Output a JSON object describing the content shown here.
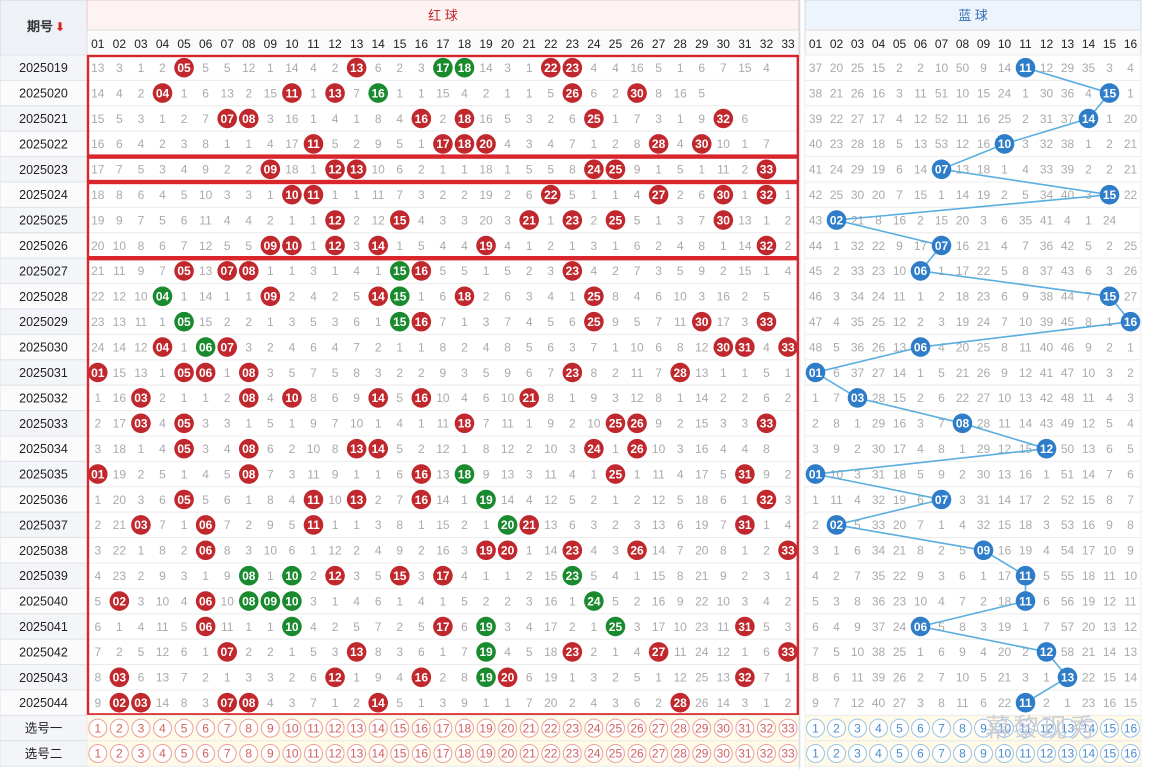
{
  "header": {
    "period_label": "期号",
    "red_label": "红 球",
    "blue_label": "蓝 球",
    "select_row_1": "选号一",
    "select_row_2": "选号二"
  },
  "colors": {
    "red_ball": "#c0282d",
    "green_ball": "#1a8a2e",
    "blue_ball": "#2f7dc8",
    "blue_line": "#5aaee0",
    "box_border": "#d9262c"
  },
  "icons": {
    "sort": "down-arrow-icon"
  },
  "watermark": "幕黎现秀",
  "rows": [
    {
      "period": "2025019",
      "red_cells": [
        13,
        3,
        1,
        2,
        "05",
        5,
        5,
        12,
        1,
        14,
        4,
        2,
        "13",
        6,
        2,
        3,
        "17",
        "18",
        14,
        3,
        1,
        "22",
        "23",
        4,
        4,
        16,
        5,
        1,
        6,
        7,
        15,
        4,
        null
      ],
      "green": [
        17,
        18
      ],
      "blue_cells": [
        37,
        20,
        25,
        15,
        2,
        2,
        10,
        50,
        9,
        14,
        "11",
        12,
        29,
        35,
        3,
        4
      ],
      "blue": 11
    },
    {
      "period": "2025020",
      "red_cells": [
        14,
        4,
        2,
        "04",
        1,
        6,
        13,
        2,
        15,
        "11",
        1,
        "13",
        7,
        "16",
        1,
        1,
        15,
        4,
        2,
        1,
        1,
        5,
        "26",
        6,
        2,
        "30",
        8,
        16,
        5,
        null,
        null,
        null,
        null
      ],
      "green": [
        16
      ],
      "blue_cells": [
        38,
        21,
        26,
        16,
        3,
        11,
        51,
        10,
        15,
        24,
        1,
        30,
        36,
        4,
        "15",
        1
      ],
      "blue": 15
    },
    {
      "period": "2025021",
      "red_cells": [
        15,
        5,
        3,
        1,
        2,
        7,
        "07",
        "08",
        3,
        16,
        1,
        4,
        1,
        8,
        4,
        "16",
        2,
        "18",
        16,
        5,
        3,
        2,
        6,
        "25",
        1,
        7,
        3,
        1,
        9,
        "32",
        6,
        null,
        null
      ],
      "green": [],
      "blue_cells": [
        39,
        22,
        27,
        17,
        4,
        12,
        52,
        11,
        16,
        25,
        2,
        31,
        37,
        "14",
        1,
        20
      ],
      "blue": 14
    },
    {
      "period": "2025022",
      "red_cells": [
        16,
        6,
        4,
        2,
        3,
        8,
        1,
        1,
        4,
        17,
        "11",
        5,
        2,
        9,
        5,
        1,
        "17",
        "18",
        "20",
        4,
        3,
        4,
        7,
        1,
        2,
        8,
        "28",
        4,
        "30",
        10,
        1,
        7,
        null
      ],
      "green": [],
      "blue_cells": [
        40,
        23,
        28,
        18,
        5,
        13,
        53,
        12,
        16,
        "10",
        3,
        32,
        38,
        1,
        2,
        21
      ],
      "blue": 10
    },
    {
      "period": "2025023",
      "red_cells": [
        17,
        7,
        5,
        3,
        4,
        9,
        2,
        2,
        "09",
        18,
        1,
        "12",
        "13",
        10,
        6,
        2,
        1,
        1,
        18,
        1,
        5,
        5,
        8,
        "24",
        "25",
        9,
        1,
        5,
        1,
        11,
        2,
        "33",
        null
      ],
      "green": [],
      "blue_cells": [
        41,
        24,
        29,
        19,
        6,
        14,
        "07",
        13,
        18,
        1,
        4,
        33,
        39,
        2,
        2,
        21
      ],
      "blue": 7
    },
    {
      "period": "2025024",
      "red_cells": [
        18,
        8,
        6,
        4,
        5,
        10,
        3,
        3,
        1,
        "10",
        "11",
        1,
        1,
        11,
        7,
        3,
        2,
        2,
        19,
        2,
        6,
        "22",
        5,
        1,
        1,
        4,
        "27",
        2,
        6,
        "30",
        1,
        "32",
        1
      ],
      "green": [],
      "blue_cells": [
        42,
        25,
        30,
        20,
        7,
        15,
        1,
        14,
        19,
        2,
        5,
        34,
        40,
        3,
        "15",
        22
      ],
      "blue": 15
    },
    {
      "period": "2025025",
      "red_cells": [
        19,
        9,
        7,
        5,
        6,
        11,
        4,
        4,
        2,
        1,
        1,
        "12",
        2,
        12,
        "15",
        4,
        3,
        3,
        20,
        3,
        "21",
        1,
        "23",
        2,
        "25",
        5,
        1,
        3,
        7,
        "30",
        13,
        1,
        2
      ],
      "green": [],
      "blue_cells": [
        43,
        "02",
        21,
        8,
        16,
        2,
        15,
        20,
        3,
        6,
        35,
        41,
        4,
        1,
        24,
        null
      ],
      "blue": 2
    },
    {
      "period": "2025026",
      "red_cells": [
        20,
        10,
        8,
        6,
        7,
        12,
        5,
        5,
        "09",
        "10",
        1,
        "12",
        3,
        "14",
        1,
        5,
        4,
        4,
        "19",
        4,
        1,
        2,
        1,
        3,
        1,
        6,
        2,
        4,
        8,
        1,
        14,
        "32",
        2
      ],
      "green": [],
      "blue_cells": [
        44,
        1,
        32,
        22,
        9,
        17,
        "07",
        16,
        21,
        4,
        7,
        36,
        42,
        5,
        2,
        25
      ],
      "blue": 7
    },
    {
      "period": "2025027",
      "red_cells": [
        21,
        11,
        9,
        7,
        "05",
        13,
        "07",
        "08",
        1,
        1,
        3,
        1,
        4,
        1,
        "15",
        "16",
        5,
        5,
        1,
        5,
        2,
        3,
        "23",
        4,
        2,
        7,
        3,
        5,
        9,
        2,
        15,
        1,
        4
      ],
      "green": [
        15
      ],
      "blue_cells": [
        45,
        2,
        33,
        23,
        10,
        "06",
        1,
        17,
        22,
        5,
        8,
        37,
        43,
        6,
        3,
        26
      ],
      "blue": 6
    },
    {
      "period": "2025028",
      "red_cells": [
        22,
        12,
        10,
        "04",
        1,
        14,
        1,
        1,
        "09",
        2,
        4,
        2,
        5,
        "14",
        "15",
        1,
        6,
        "18",
        2,
        6,
        3,
        4,
        1,
        "25",
        8,
        4,
        6,
        10,
        3,
        16,
        2,
        5,
        null
      ],
      "green": [
        4,
        15
      ],
      "blue_cells": [
        46,
        3,
        34,
        24,
        11,
        1,
        2,
        18,
        23,
        6,
        9,
        38,
        44,
        7,
        "15",
        27
      ],
      "blue": 15
    },
    {
      "period": "2025029",
      "red_cells": [
        23,
        13,
        11,
        1,
        "05",
        15,
        2,
        2,
        1,
        3,
        5,
        3,
        6,
        1,
        "15",
        "16",
        7,
        1,
        3,
        7,
        4,
        5,
        6,
        "25",
        9,
        5,
        7,
        11,
        "30",
        17,
        3,
        "33",
        null
      ],
      "green": [
        5,
        15
      ],
      "blue_cells": [
        47,
        4,
        35,
        25,
        12,
        2,
        3,
        19,
        24,
        7,
        10,
        39,
        45,
        8,
        1,
        "16"
      ],
      "blue": 16
    },
    {
      "period": "2025030",
      "red_cells": [
        24,
        14,
        12,
        "04",
        1,
        "06",
        "07",
        3,
        2,
        4,
        6,
        4,
        7,
        2,
        1,
        1,
        8,
        2,
        4,
        8,
        5,
        6,
        3,
        7,
        1,
        10,
        6,
        8,
        12,
        "30",
        "31",
        4,
        "33"
      ],
      "green": [
        6
      ],
      "blue_cells": [
        48,
        5,
        36,
        26,
        13,
        "06",
        4,
        20,
        25,
        8,
        11,
        40,
        46,
        9,
        2,
        1
      ],
      "blue": 6
    },
    {
      "period": "2025031",
      "red_cells": [
        "01",
        15,
        13,
        1,
        "05",
        "06",
        1,
        "08",
        3,
        5,
        7,
        5,
        8,
        3,
        2,
        2,
        9,
        3,
        5,
        9,
        6,
        7,
        "23",
        8,
        2,
        11,
        7,
        "28",
        13,
        1,
        1,
        5,
        1
      ],
      "green": [],
      "blue_cells": [
        "01",
        6,
        37,
        27,
        14,
        1,
        5,
        21,
        26,
        9,
        12,
        41,
        47,
        10,
        3,
        2
      ],
      "blue": 1
    },
    {
      "period": "2025032",
      "red_cells": [
        1,
        16,
        "03",
        2,
        1,
        1,
        2,
        "08",
        4,
        "10",
        8,
        6,
        9,
        "14",
        5,
        "16",
        10,
        4,
        6,
        10,
        "21",
        8,
        1,
        9,
        3,
        12,
        8,
        1,
        14,
        2,
        2,
        6,
        2
      ],
      "green": [],
      "blue_cells": [
        1,
        7,
        "03",
        28,
        15,
        2,
        6,
        22,
        27,
        10,
        13,
        42,
        48,
        11,
        4,
        3
      ],
      "blue": 3
    },
    {
      "period": "2025033",
      "red_cells": [
        2,
        17,
        "03",
        4,
        "05",
        3,
        3,
        1,
        5,
        1,
        9,
        7,
        10,
        1,
        4,
        1,
        11,
        "18",
        7,
        11,
        1,
        9,
        2,
        10,
        "25",
        "26",
        9,
        2,
        15,
        3,
        3,
        "33",
        null
      ],
      "green": [],
      "blue_cells": [
        2,
        8,
        1,
        29,
        16,
        3,
        7,
        "08",
        28,
        11,
        14,
        43,
        49,
        12,
        5,
        4
      ],
      "blue": 8
    },
    {
      "period": "2025034",
      "red_cells": [
        3,
        18,
        1,
        4,
        "05",
        3,
        4,
        "08",
        6,
        2,
        10,
        8,
        "13",
        "14",
        5,
        2,
        12,
        1,
        8,
        12,
        2,
        10,
        3,
        "24",
        1,
        "26",
        10,
        3,
        16,
        4,
        4,
        8,
        null
      ],
      "green": [],
      "blue_cells": [
        3,
        9,
        2,
        30,
        17,
        4,
        8,
        1,
        29,
        12,
        15,
        "12",
        50,
        13,
        6,
        5
      ],
      "blue": 12
    },
    {
      "period": "2025035",
      "red_cells": [
        "01",
        19,
        2,
        5,
        1,
        4,
        5,
        "08",
        7,
        3,
        11,
        9,
        1,
        1,
        6,
        "16",
        13,
        "18",
        9,
        13,
        3,
        11,
        4,
        1,
        "25",
        1,
        11,
        4,
        17,
        5,
        "31",
        9,
        2
      ],
      "green": [
        18
      ],
      "blue_cells": [
        "01",
        10,
        3,
        31,
        18,
        5,
        9,
        2,
        30,
        13,
        16,
        1,
        51,
        14,
        7,
        6
      ],
      "blue": 1
    },
    {
      "period": "2025036",
      "red_cells": [
        1,
        20,
        3,
        6,
        "05",
        5,
        6,
        1,
        8,
        4,
        "11",
        10,
        "13",
        2,
        7,
        "16",
        14,
        1,
        "19",
        14,
        4,
        12,
        5,
        2,
        1,
        2,
        12,
        5,
        18,
        6,
        1,
        "32",
        3
      ],
      "green": [
        19
      ],
      "blue_cells": [
        1,
        11,
        4,
        32,
        19,
        6,
        "07",
        3,
        31,
        14,
        17,
        2,
        52,
        15,
        8,
        7
      ],
      "blue": 7
    },
    {
      "period": "2025037",
      "red_cells": [
        2,
        21,
        "03",
        7,
        1,
        "06",
        7,
        2,
        9,
        5,
        "11",
        1,
        1,
        3,
        8,
        1,
        15,
        2,
        1,
        "20",
        "21",
        13,
        6,
        3,
        2,
        3,
        13,
        6,
        19,
        7,
        "31",
        1,
        4
      ],
      "green": [
        20
      ],
      "blue_cells": [
        2,
        "02",
        5,
        33,
        20,
        7,
        1,
        4,
        32,
        15,
        18,
        3,
        53,
        16,
        9,
        8
      ],
      "blue": 2
    },
    {
      "period": "2025038",
      "red_cells": [
        3,
        22,
        1,
        8,
        2,
        "06",
        8,
        3,
        10,
        6,
        1,
        12,
        2,
        4,
        9,
        2,
        16,
        3,
        "19",
        "20",
        1,
        14,
        "23",
        4,
        3,
        "26",
        14,
        7,
        20,
        8,
        1,
        2,
        "33"
      ],
      "green": [],
      "blue_cells": [
        3,
        1,
        6,
        34,
        21,
        8,
        2,
        5,
        "09",
        16,
        19,
        4,
        54,
        17,
        10,
        9
      ],
      "blue": 9
    },
    {
      "period": "2025039",
      "red_cells": [
        4,
        23,
        2,
        9,
        3,
        1,
        9,
        "08",
        1,
        "10",
        2,
        "12",
        3,
        5,
        "15",
        3,
        "17",
        4,
        1,
        1,
        2,
        15,
        "23",
        5,
        4,
        1,
        15,
        8,
        21,
        9,
        2,
        3,
        1
      ],
      "green": [
        8,
        10,
        23
      ],
      "blue_cells": [
        4,
        2,
        7,
        35,
        22,
        9,
        3,
        6,
        1,
        17,
        "11",
        5,
        55,
        18,
        11,
        10
      ],
      "blue": 11
    },
    {
      "period": "2025040",
      "red_cells": [
        5,
        "02",
        3,
        10,
        4,
        "06",
        10,
        "08",
        "09",
        "10",
        3,
        1,
        4,
        6,
        1,
        4,
        1,
        5,
        2,
        2,
        3,
        16,
        1,
        "24",
        5,
        2,
        16,
        9,
        22,
        10,
        3,
        4,
        2
      ],
      "green": [
        8,
        9,
        10,
        24
      ],
      "blue_cells": [
        5,
        3,
        8,
        36,
        23,
        10,
        4,
        7,
        2,
        18,
        "11",
        6,
        56,
        19,
        12,
        11
      ],
      "blue": 11
    },
    {
      "period": "2025041",
      "red_cells": [
        6,
        1,
        4,
        11,
        5,
        "06",
        11,
        1,
        1,
        "10",
        4,
        2,
        5,
        7,
        2,
        5,
        "17",
        6,
        "19",
        3,
        4,
        17,
        2,
        1,
        "25",
        3,
        17,
        10,
        23,
        11,
        "31",
        5,
        3
      ],
      "green": [
        10,
        19,
        25
      ],
      "blue_cells": [
        6,
        4,
        9,
        37,
        24,
        "06",
        5,
        8,
        3,
        19,
        1,
        7,
        57,
        20,
        13,
        12
      ],
      "blue": 6
    },
    {
      "period": "2025042",
      "red_cells": [
        7,
        2,
        5,
        12,
        6,
        1,
        "07",
        2,
        2,
        1,
        5,
        3,
        "13",
        8,
        3,
        6,
        1,
        7,
        "19",
        4,
        5,
        18,
        "23",
        2,
        1,
        4,
        "27",
        11,
        24,
        12,
        1,
        6,
        "33"
      ],
      "green": [
        19
      ],
      "blue_cells": [
        7,
        5,
        10,
        38,
        25,
        1,
        6,
        9,
        4,
        20,
        2,
        "12",
        58,
        21,
        14,
        13
      ],
      "blue": 12
    },
    {
      "period": "2025043",
      "red_cells": [
        8,
        "03",
        6,
        13,
        7,
        2,
        1,
        3,
        3,
        2,
        6,
        "12",
        1,
        9,
        4,
        "16",
        2,
        8,
        "19",
        "20",
        6,
        19,
        1,
        3,
        2,
        5,
        1,
        12,
        25,
        13,
        "32",
        7,
        1
      ],
      "green": [
        19
      ],
      "blue_cells": [
        8,
        6,
        11,
        39,
        26,
        2,
        7,
        10,
        5,
        21,
        3,
        1,
        "13",
        22,
        15,
        14
      ],
      "blue": 13
    },
    {
      "period": "2025044",
      "red_cells": [
        9,
        "02",
        "03",
        14,
        8,
        3,
        "07",
        "08",
        4,
        3,
        7,
        1,
        2,
        "14",
        5,
        1,
        3,
        9,
        1,
        1,
        7,
        20,
        2,
        4,
        3,
        6,
        2,
        "28",
        26,
        14,
        3,
        1,
        2
      ],
      "green": [],
      "blue_cells": [
        9,
        7,
        12,
        40,
        27,
        3,
        8,
        11,
        6,
        22,
        "11",
        2,
        1,
        23,
        16,
        15
      ],
      "blue": 11
    }
  ],
  "boxes": [
    {
      "from": 0,
      "to": 3
    },
    {
      "from": 4,
      "to": 4
    },
    {
      "from": 5,
      "to": 7
    },
    {
      "from": 8,
      "to": 25
    }
  ]
}
